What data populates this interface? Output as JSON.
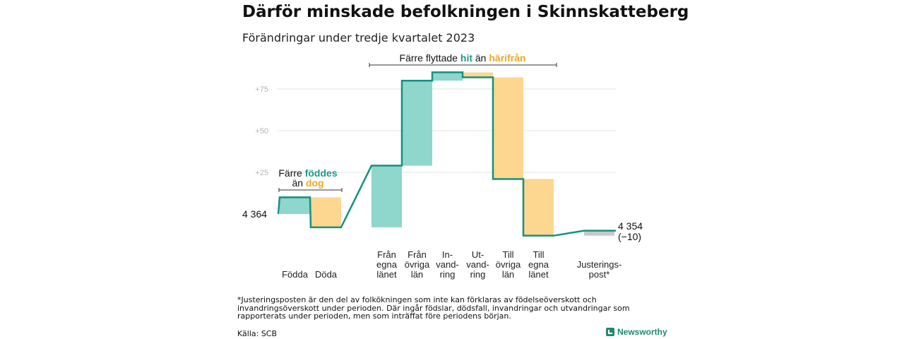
{
  "header": {
    "title": "Därför minskade befolkningen i Skinnskatteberg",
    "subtitle": "Förändringar under tredje kvartalet 2023"
  },
  "chart_data": {
    "type": "waterfall",
    "start_value": 4364,
    "end_value": 4354,
    "start_label": "4 364",
    "end_label": "4 354",
    "end_change_label": "(−10)",
    "y_ticks": [
      {
        "value": 25,
        "label": "+25"
      },
      {
        "value": 50,
        "label": "+50"
      },
      {
        "value": 75,
        "label": "+75"
      }
    ],
    "steps": [
      {
        "label_lines": [
          "Födda"
        ],
        "delta": 10,
        "kind": "inflow"
      },
      {
        "label_lines": [
          "Döda"
        ],
        "delta": -18,
        "kind": "outflow"
      },
      {
        "label_lines": [
          "Från",
          "egna",
          "länet"
        ],
        "delta": 37,
        "kind": "inflow"
      },
      {
        "label_lines": [
          "Från",
          "övriga",
          "län"
        ],
        "delta": 51,
        "kind": "inflow"
      },
      {
        "label_lines": [
          "In-",
          "vand-",
          "ring"
        ],
        "delta": 5,
        "kind": "inflow"
      },
      {
        "label_lines": [
          "Ut-",
          "vand-",
          "ring"
        ],
        "delta": -3,
        "kind": "outflow"
      },
      {
        "label_lines": [
          "Till",
          "övriga",
          "län"
        ],
        "delta": -61,
        "kind": "outflow"
      },
      {
        "label_lines": [
          "Till",
          "egna",
          "länet"
        ],
        "delta": -34,
        "kind": "outflow"
      },
      {
        "label_lines": [
          "Justerings-",
          "post*"
        ],
        "delta": 3,
        "kind": "adjustment"
      }
    ],
    "annotations": [
      {
        "parts": [
          "Färre ",
          "föddes"
        ],
        "line2": [
          "än ",
          "dog"
        ]
      },
      {
        "parts": [
          "Färre flyttade ",
          "hit",
          " än ",
          "härifrån"
        ]
      }
    ],
    "colors": {
      "inflow": "#8fd6cc",
      "outflow": "#fdd78f",
      "adjustment": "#c8c8c8",
      "line": "#14917f",
      "grid": "#e3e3e3"
    }
  },
  "footer": {
    "footnote": "*Justeringsposten är den del av folkökningen som inte kan förklaras av födelseöverskott och invandringsöverskott under perioden. Där ingår födslar, dödsfall, invandringar och utvandringar som rapporterats under perioden, men som inträffat före periodens början.",
    "source": "Källa: SCB",
    "brand": "Newsworthy"
  }
}
